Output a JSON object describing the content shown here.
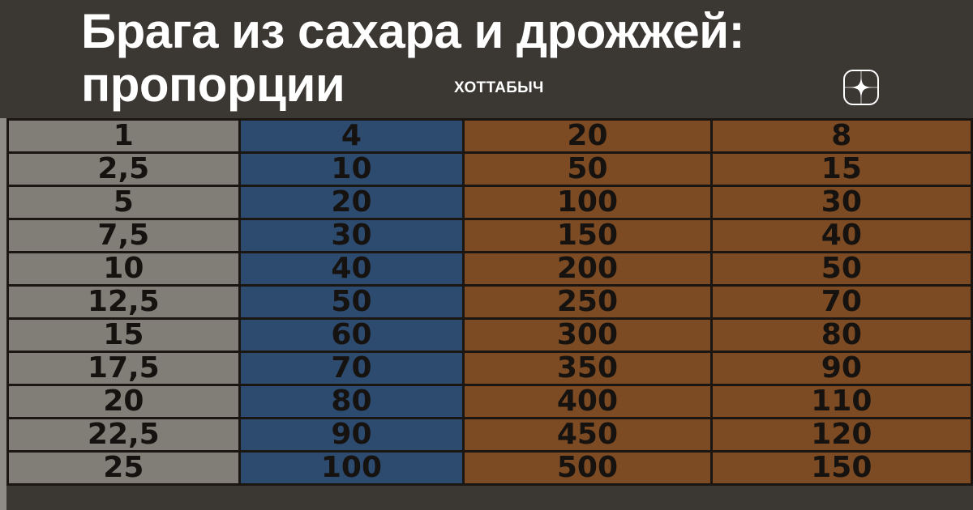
{
  "title": "Брага из сахара и дрожжей: пропорции",
  "author": "ХОТТАБЫЧ",
  "logo_icon": "dzen-star-icon",
  "colors": {
    "gray_column": "#817d77",
    "blue_column": "#2d4a6f",
    "orange_column": "#7c4b23",
    "text": "#ffffff"
  },
  "table": {
    "rows": [
      [
        "1",
        "4",
        "20",
        "8"
      ],
      [
        "2,5",
        "10",
        "50",
        "15"
      ],
      [
        "5",
        "20",
        "100",
        "30"
      ],
      [
        "7,5",
        "30",
        "150",
        "40"
      ],
      [
        "10",
        "40",
        "200",
        "50"
      ],
      [
        "12,5",
        "50",
        "250",
        "70"
      ],
      [
        "15",
        "60",
        "300",
        "80"
      ],
      [
        "17,5",
        "70",
        "350",
        "90"
      ],
      [
        "20",
        "80",
        "400",
        "110"
      ],
      [
        "22,5",
        "90",
        "450",
        "120"
      ],
      [
        "25",
        "100",
        "500",
        "150"
      ]
    ]
  }
}
